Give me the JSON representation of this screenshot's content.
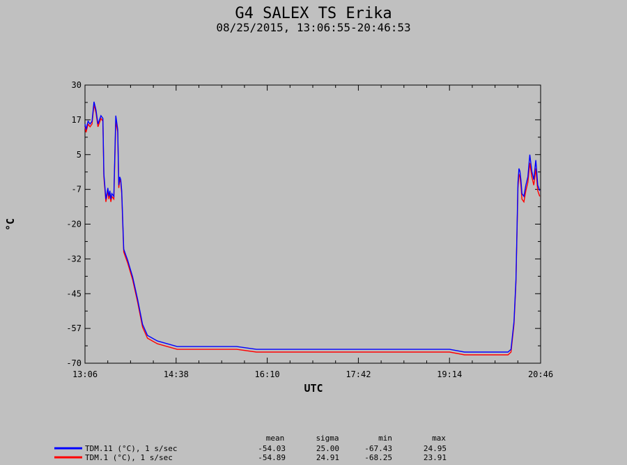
{
  "chart_data": {
    "type": "line",
    "title": "G4 SALEX TS Erika",
    "subtitle": "08/25/2015, 13:06:55-20:46:53",
    "xlabel": "UTC",
    "ylabel": "°C",
    "x_ticks": [
      "13:06",
      "14:38",
      "16:10",
      "17:42",
      "19:14",
      "20:46"
    ],
    "y_ticks": [
      "30",
      "17",
      "5",
      "-7",
      "-20",
      "-32",
      "-45",
      "-57",
      "-70"
    ],
    "ylim": [
      -70,
      30
    ],
    "xlim": [
      "13:06",
      "20:46"
    ],
    "grid": false,
    "series": [
      {
        "name": "TDM.11 (°C), 1 s/sec",
        "color": "#0000ff",
        "x": [
          "13:06",
          "13:08",
          "13:10",
          "13:12",
          "13:14",
          "13:16",
          "13:18",
          "13:20",
          "13:23",
          "13:25",
          "13:26",
          "13:28",
          "13:30",
          "13:31",
          "13:32",
          "13:33",
          "13:34",
          "13:36",
          "13:38",
          "13:40",
          "13:41",
          "13:42",
          "13:43",
          "13:44",
          "13:46",
          "13:48",
          "13:50",
          "13:55",
          "14:00",
          "14:05",
          "14:10",
          "14:15",
          "14:20",
          "14:30",
          "14:40",
          "14:50",
          "15:00",
          "15:20",
          "15:40",
          "16:00",
          "16:15",
          "16:30",
          "17:00",
          "17:30",
          "18:00",
          "18:30",
          "19:00",
          "19:15",
          "19:30",
          "19:45",
          "20:00",
          "20:10",
          "20:14",
          "20:17",
          "20:20",
          "20:22",
          "20:24",
          "20:25",
          "20:26",
          "20:27",
          "20:28",
          "20:30",
          "20:32",
          "20:34",
          "20:36",
          "20:38",
          "20:40",
          "20:42",
          "20:44",
          "20:46"
        ],
        "values": [
          16,
          14,
          17,
          16,
          17,
          24,
          21,
          16,
          19,
          18,
          -2,
          -11,
          -7,
          -10,
          -8,
          -11,
          -9,
          -10,
          19,
          14,
          -6,
          -3,
          -4,
          -8,
          -29,
          -31,
          -33,
          -39,
          -47,
          -56,
          -60,
          -61,
          -62,
          -63,
          -64,
          -64,
          -64,
          -64,
          -64,
          -65,
          -65,
          -65,
          -65,
          -65,
          -65,
          -65,
          -65,
          -65,
          -66,
          -66,
          -66,
          -66,
          -66,
          -65,
          -55,
          -40,
          -5,
          0,
          -1,
          -4,
          -9,
          -10,
          -6,
          -3,
          5,
          -1,
          -4,
          3,
          -6,
          -8
        ]
      },
      {
        "name": "TDM.1 (°C), 1 s/sec",
        "color": "#ff0000",
        "x": [
          "13:06",
          "13:08",
          "13:10",
          "13:12",
          "13:14",
          "13:16",
          "13:18",
          "13:20",
          "13:23",
          "13:25",
          "13:26",
          "13:28",
          "13:30",
          "13:31",
          "13:32",
          "13:33",
          "13:34",
          "13:36",
          "13:38",
          "13:40",
          "13:41",
          "13:42",
          "13:43",
          "13:44",
          "13:46",
          "13:48",
          "13:50",
          "13:55",
          "14:00",
          "14:05",
          "14:10",
          "14:15",
          "14:20",
          "14:30",
          "14:40",
          "14:50",
          "15:00",
          "15:20",
          "15:40",
          "16:00",
          "16:15",
          "16:30",
          "17:00",
          "17:30",
          "18:00",
          "18:30",
          "19:00",
          "19:15",
          "19:30",
          "19:45",
          "20:00",
          "20:10",
          "20:14",
          "20:17",
          "20:20",
          "20:22",
          "20:24",
          "20:25",
          "20:26",
          "20:27",
          "20:28",
          "20:30",
          "20:32",
          "20:34",
          "20:36",
          "20:38",
          "20:40",
          "20:42",
          "20:44",
          "20:46"
        ],
        "values": [
          15,
          13,
          16,
          15,
          16,
          23,
          20,
          15,
          18,
          17,
          -3,
          -12,
          -8,
          -11,
          -9,
          -12,
          -10,
          -11,
          17,
          13,
          -7,
          -4,
          -5,
          -9,
          -30,
          -32,
          -34,
          -40,
          -48,
          -57,
          -61,
          -62,
          -63,
          -64,
          -65,
          -65,
          -65,
          -65,
          -65,
          -66,
          -66,
          -66,
          -66,
          -66,
          -66,
          -66,
          -66,
          -66,
          -67,
          -67,
          -67,
          -67,
          -67,
          -66,
          -56,
          -41,
          -7,
          -2,
          -3,
          -6,
          -11,
          -12,
          -8,
          -5,
          2,
          -3,
          -6,
          0,
          -8,
          -10
        ]
      }
    ]
  },
  "stats": {
    "headers": [
      "mean",
      "sigma",
      "min",
      "max"
    ],
    "rows": [
      {
        "label": "TDM.11 (°C), 1 s/sec",
        "color": "#0000ff",
        "mean": "-54.03",
        "sigma": "25.00",
        "min": "-67.43",
        "max": "24.95"
      },
      {
        "label": "TDM.1 (°C), 1 s/sec",
        "color": "#ff0000",
        "mean": "-54.89",
        "sigma": "24.91",
        "min": "-68.25",
        "max": "23.91"
      }
    ]
  }
}
